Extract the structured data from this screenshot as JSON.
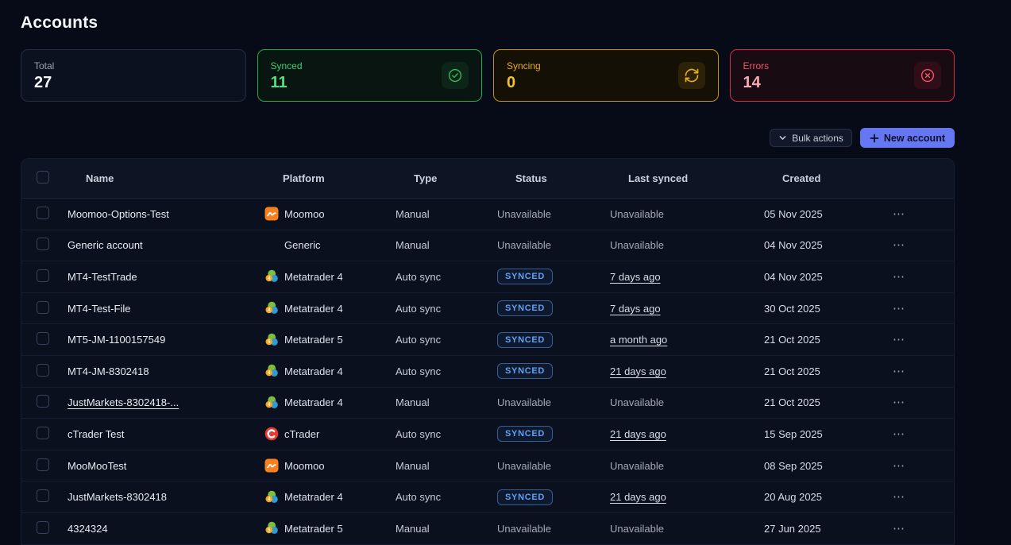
{
  "page": {
    "title": "Accounts"
  },
  "stats": {
    "total": {
      "label": "Total",
      "value": "27"
    },
    "synced": {
      "label": "Synced",
      "value": "11",
      "icon": "check-circle-icon",
      "color": "#2BA84F"
    },
    "syncing": {
      "label": "Syncing",
      "value": "0",
      "icon": "refresh-icon",
      "color": "#E2A315"
    },
    "errors": {
      "label": "Errors",
      "value": "14",
      "icon": "x-circle-icon",
      "color": "#E12D4E"
    }
  },
  "toolbar": {
    "bulk_actions_label": "Bulk actions",
    "new_account_label": "New account",
    "accent_color": "#6577F3"
  },
  "table": {
    "columns": {
      "name": "Name",
      "platform": "Platform",
      "type": "Type",
      "status": "Status",
      "last_synced": "Last synced",
      "created": "Created"
    },
    "status_badge_color": "#5FA2F5",
    "actions_label": "⋯",
    "rows": [
      {
        "name": "Moomoo-Options-Test",
        "name_link": false,
        "platform_icon": "moomoo",
        "platform": "Moomoo",
        "type": "Manual",
        "status": "Unavailable",
        "status_badge": false,
        "last_synced": "Unavailable",
        "last_synced_link": false,
        "created": "05 Nov 2025"
      },
      {
        "name": "Generic account",
        "name_link": false,
        "platform_icon": "none",
        "platform": "Generic",
        "type": "Manual",
        "status": "Unavailable",
        "status_badge": false,
        "last_synced": "Unavailable",
        "last_synced_link": false,
        "created": "04 Nov 2025"
      },
      {
        "name": "MT4-TestTrade",
        "name_link": false,
        "platform_icon": "metatrader4",
        "platform": "Metatrader 4",
        "type": "Auto sync",
        "status": "SYNCED",
        "status_badge": true,
        "last_synced": "7 days ago",
        "last_synced_link": true,
        "created": "04 Nov 2025"
      },
      {
        "name": "MT4-Test-File",
        "name_link": false,
        "platform_icon": "metatrader4",
        "platform": "Metatrader 4",
        "type": "Auto sync",
        "status": "SYNCED",
        "status_badge": true,
        "last_synced": "7 days ago",
        "last_synced_link": true,
        "created": "30 Oct 2025"
      },
      {
        "name": "MT5-JM-1100157549",
        "name_link": false,
        "platform_icon": "metatrader5",
        "platform": "Metatrader 5",
        "type": "Auto sync",
        "status": "SYNCED",
        "status_badge": true,
        "last_synced": "a month ago",
        "last_synced_link": true,
        "created": "21 Oct 2025"
      },
      {
        "name": "MT4-JM-8302418",
        "name_link": false,
        "platform_icon": "metatrader4",
        "platform": "Metatrader 4",
        "type": "Auto sync",
        "status": "SYNCED",
        "status_badge": true,
        "last_synced": "21 days ago",
        "last_synced_link": true,
        "created": "21 Oct 2025"
      },
      {
        "name": "JustMarkets-8302418-...",
        "name_link": true,
        "platform_icon": "metatrader4",
        "platform": "Metatrader 4",
        "type": "Manual",
        "status": "Unavailable",
        "status_badge": false,
        "last_synced": "Unavailable",
        "last_synced_link": false,
        "created": "21 Oct 2025"
      },
      {
        "name": "cTrader Test",
        "name_link": false,
        "platform_icon": "ctrader",
        "platform": "cTrader",
        "type": "Auto sync",
        "status": "SYNCED",
        "status_badge": true,
        "last_synced": "21 days ago",
        "last_synced_link": true,
        "created": "15 Sep 2025"
      },
      {
        "name": "MooMooTest",
        "name_link": false,
        "platform_icon": "moomoo",
        "platform": "Moomoo",
        "type": "Manual",
        "status": "Unavailable",
        "status_badge": false,
        "last_synced": "Unavailable",
        "last_synced_link": false,
        "created": "08 Sep 2025"
      },
      {
        "name": "JustMarkets-8302418",
        "name_link": false,
        "platform_icon": "metatrader4",
        "platform": "Metatrader 4",
        "type": "Auto sync",
        "status": "SYNCED",
        "status_badge": true,
        "last_synced": "21 days ago",
        "last_synced_link": true,
        "created": "20 Aug 2025"
      },
      {
        "name": "4324324",
        "name_link": false,
        "platform_icon": "metatrader5",
        "platform": "Metatrader 5",
        "type": "Manual",
        "status": "Unavailable",
        "status_badge": false,
        "last_synced": "Unavailable",
        "last_synced_link": false,
        "created": "27 Jun 2025"
      }
    ]
  }
}
